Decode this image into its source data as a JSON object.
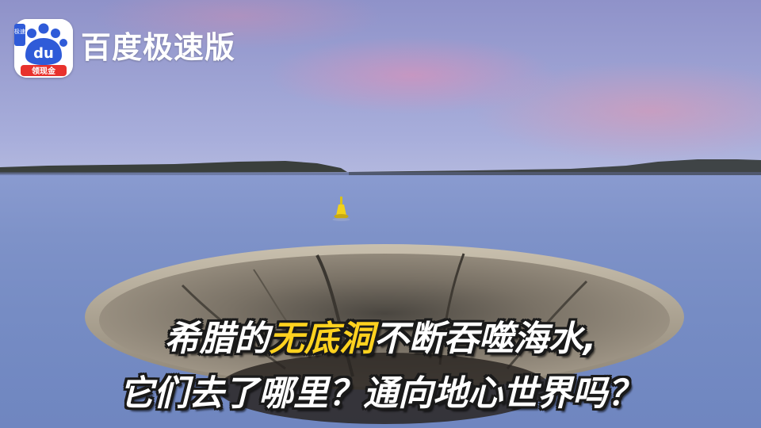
{
  "brand": {
    "name": "百度极速版",
    "logo_text": "du",
    "logo_badge": "领现金",
    "logo_side": "极速",
    "colors": {
      "red": "#e8322d",
      "blue": "#2f5bd8",
      "white": "#ffffff"
    }
  },
  "caption": {
    "line1_pre": "希腊的",
    "line1_highlight": "无底洞",
    "line1_post": "不断吞噬海水,",
    "line2": "它们去了哪里？通向地心世界吗？",
    "highlight_color": "#ffd21f"
  }
}
